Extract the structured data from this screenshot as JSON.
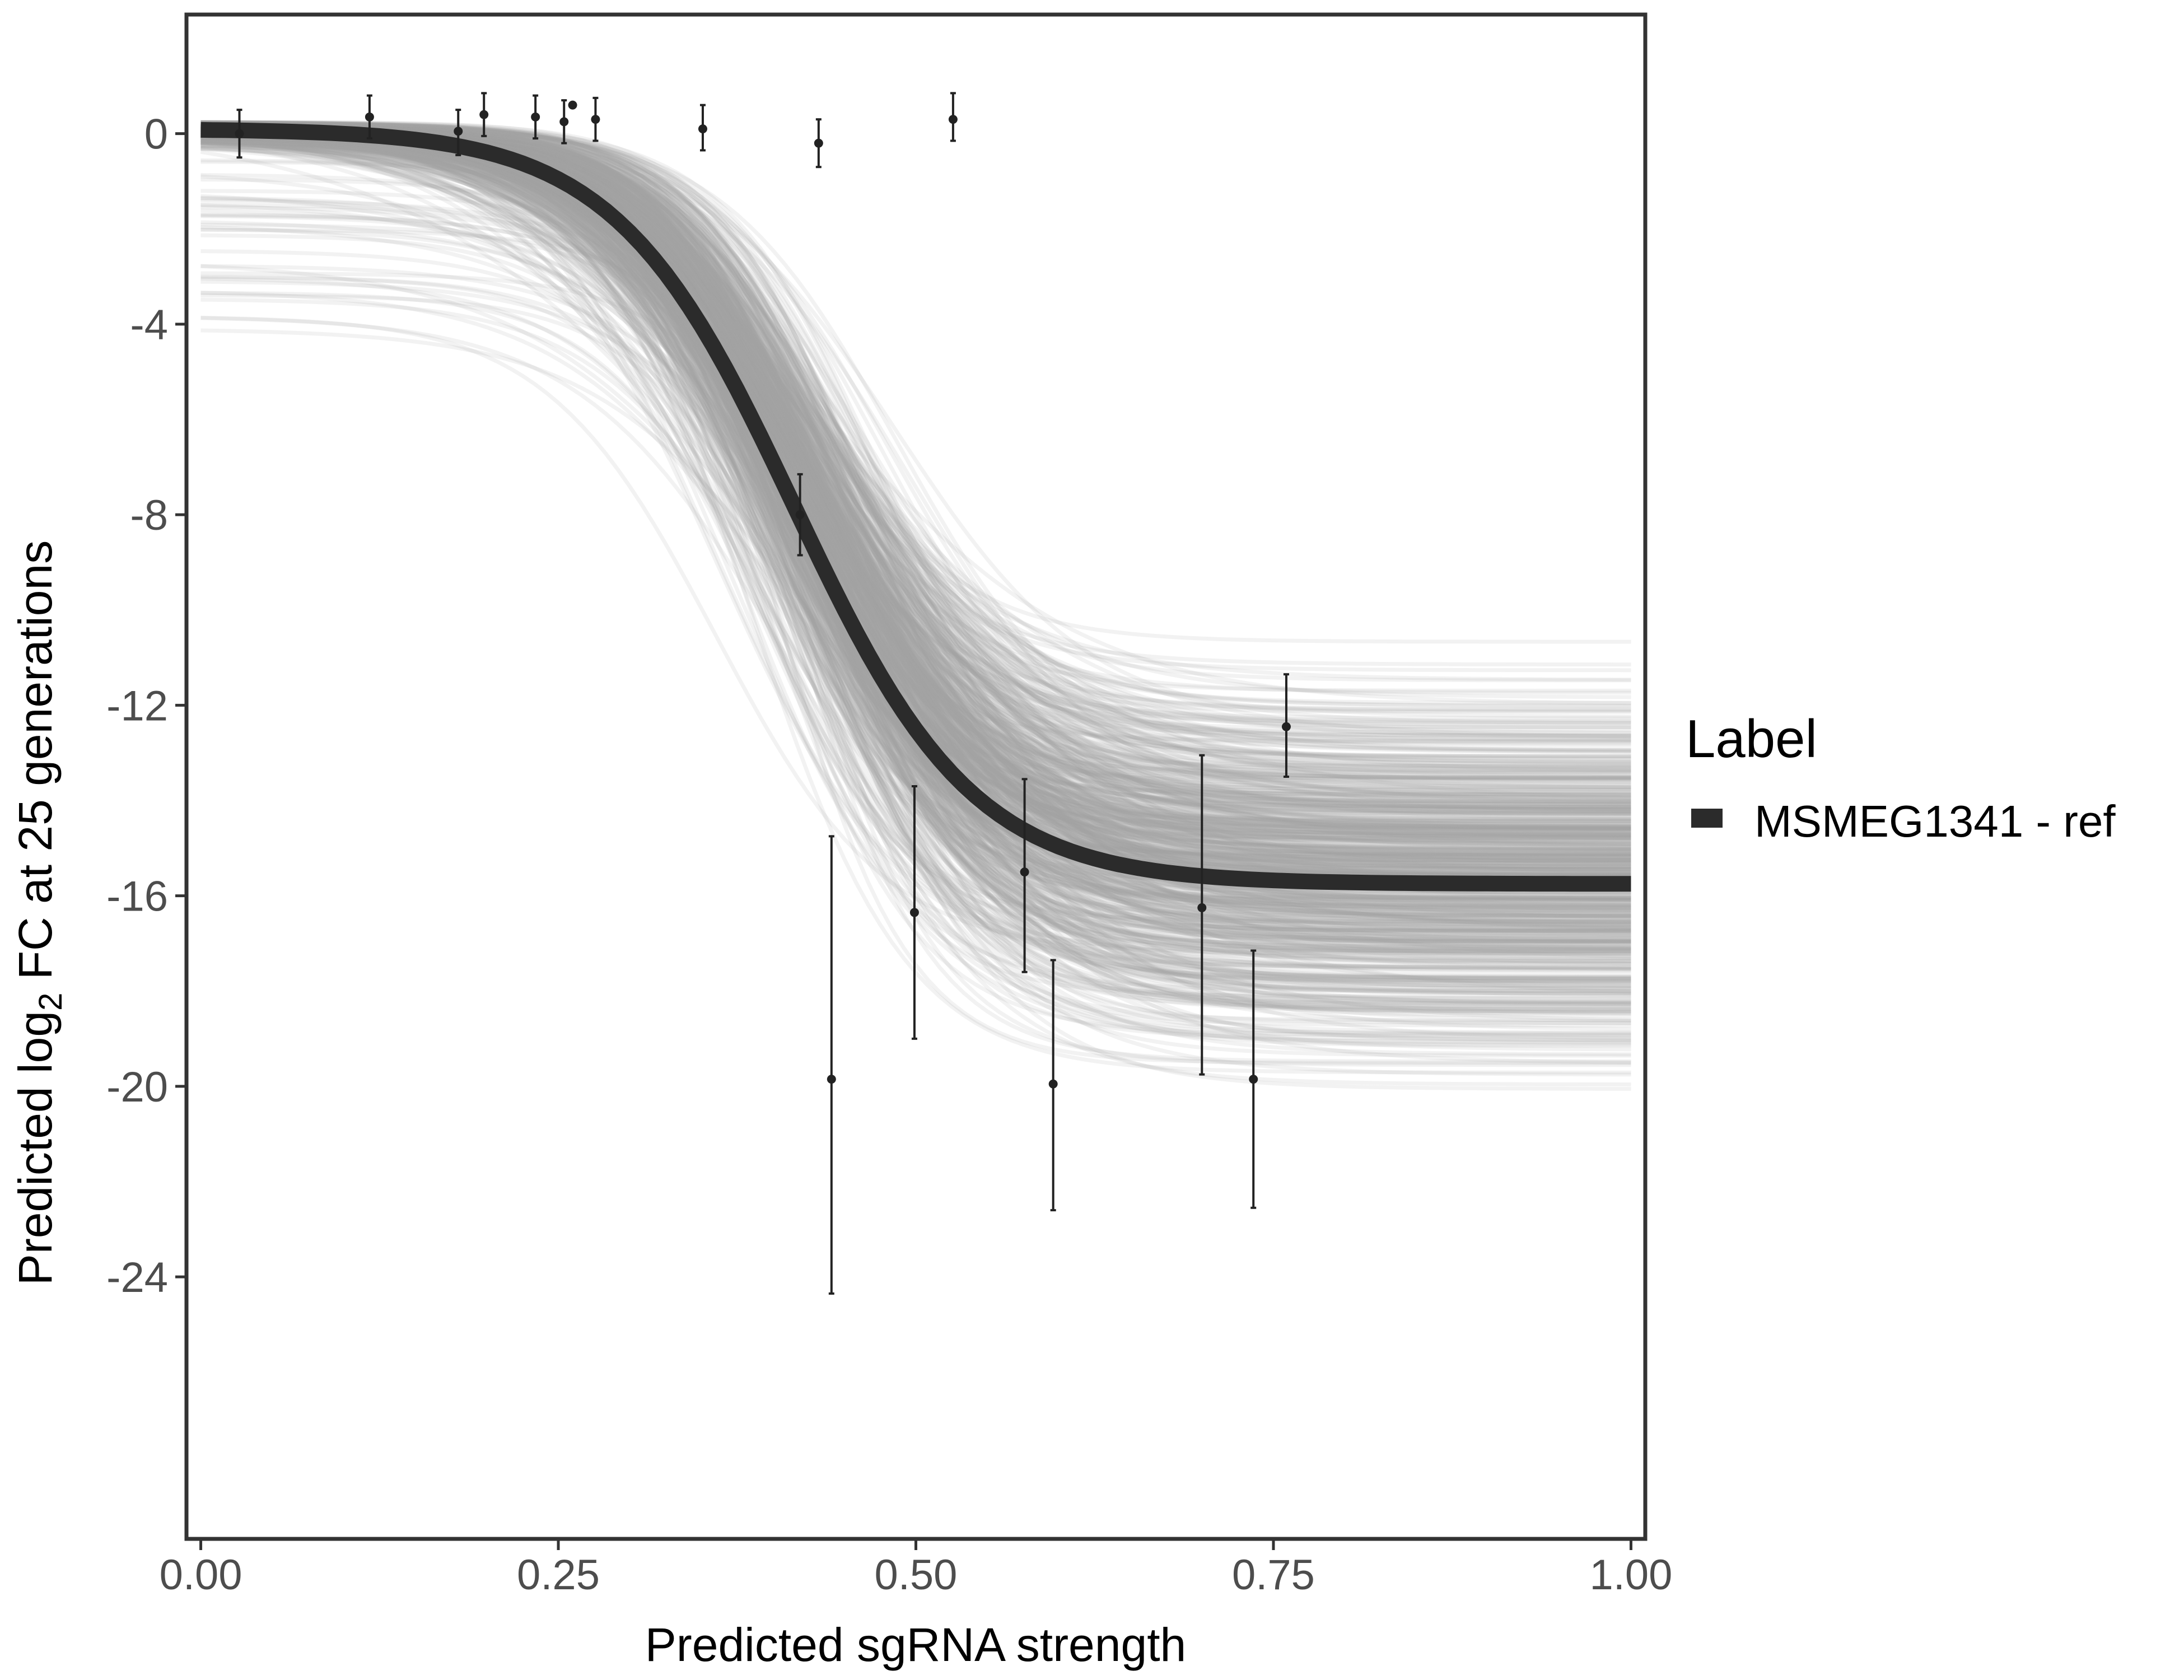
{
  "chart_data": {
    "type": "line",
    "title": "",
    "xlabel": "Predicted sgRNA strength",
    "ylabel": {
      "prefix": "Predicted  log",
      "subscript": "2",
      "suffix": " FC at 25 generations"
    },
    "xlim": [
      -0.01,
      1.01
    ],
    "ylim": [
      -29.5,
      2.5
    ],
    "x_ticks": [
      0,
      0.25,
      0.5,
      0.75,
      1
    ],
    "x_tick_labels": [
      "0.00",
      "0.25",
      "0.50",
      "0.75",
      "1.00"
    ],
    "y_ticks": [
      0,
      -4,
      -8,
      -12,
      -16,
      -20,
      -24
    ],
    "y_tick_labels": [
      "0",
      "-4",
      "-8",
      "-12",
      "-16",
      "-20",
      "-24"
    ],
    "grid": false,
    "legend": {
      "title": "Label",
      "position": "right",
      "entries": [
        {
          "label": "MSMEG1341 - ref",
          "color": "#2b2b2b"
        }
      ]
    },
    "series": [
      {
        "name": "MSMEG1341 - ref",
        "kind": "logistic_fit",
        "color": "#2b2b2b",
        "upper": 0.1,
        "lower": -15.75,
        "midpoint": 0.415,
        "rate": 16
      }
    ],
    "posterior_draws": {
      "count": 700,
      "color": "#a6a6a6",
      "upper_range": [
        -4.1,
        0.25
      ],
      "lower_range": [
        -25.9,
        -8.1
      ],
      "midpoint_range": [
        0.31,
        0.56
      ],
      "rate_range": [
        8,
        35
      ]
    },
    "points": [
      {
        "x": 0.027,
        "y": 0.0,
        "lo": -0.5,
        "hi": 0.5
      },
      {
        "x": 0.118,
        "y": 0.35,
        "lo": -0.1,
        "hi": 0.8
      },
      {
        "x": 0.18,
        "y": 0.05,
        "lo": -0.45,
        "hi": 0.5
      },
      {
        "x": 0.198,
        "y": 0.4,
        "lo": -0.05,
        "hi": 0.85
      },
      {
        "x": 0.234,
        "y": 0.35,
        "lo": -0.1,
        "hi": 0.8
      },
      {
        "x": 0.254,
        "y": 0.25,
        "lo": -0.2,
        "hi": 0.7
      },
      {
        "x": 0.26,
        "y": 0.6,
        "lo": 0.6,
        "hi": 0.6
      },
      {
        "x": 0.276,
        "y": 0.3,
        "lo": -0.15,
        "hi": 0.75
      },
      {
        "x": 0.351,
        "y": 0.1,
        "lo": -0.35,
        "hi": 0.6
      },
      {
        "x": 0.432,
        "y": -0.2,
        "lo": -0.7,
        "hi": 0.3
      },
      {
        "x": 0.419,
        "y": -8.0,
        "lo": -8.85,
        "hi": -7.15
      },
      {
        "x": 0.441,
        "y": -19.85,
        "lo": -24.35,
        "hi": -14.75
      },
      {
        "x": 0.499,
        "y": -16.35,
        "lo": -19.0,
        "hi": -13.7
      },
      {
        "x": 0.526,
        "y": 0.3,
        "lo": -0.15,
        "hi": 0.85
      },
      {
        "x": 0.576,
        "y": -15.5,
        "lo": -17.6,
        "hi": -13.55
      },
      {
        "x": 0.596,
        "y": -19.95,
        "lo": -22.6,
        "hi": -17.35
      },
      {
        "x": 0.7,
        "y": -16.25,
        "lo": -19.75,
        "hi": -13.05
      },
      {
        "x": 0.736,
        "y": -19.85,
        "lo": -22.55,
        "hi": -17.15
      },
      {
        "x": 0.759,
        "y": -12.45,
        "lo": -13.5,
        "hi": -11.35
      }
    ]
  }
}
